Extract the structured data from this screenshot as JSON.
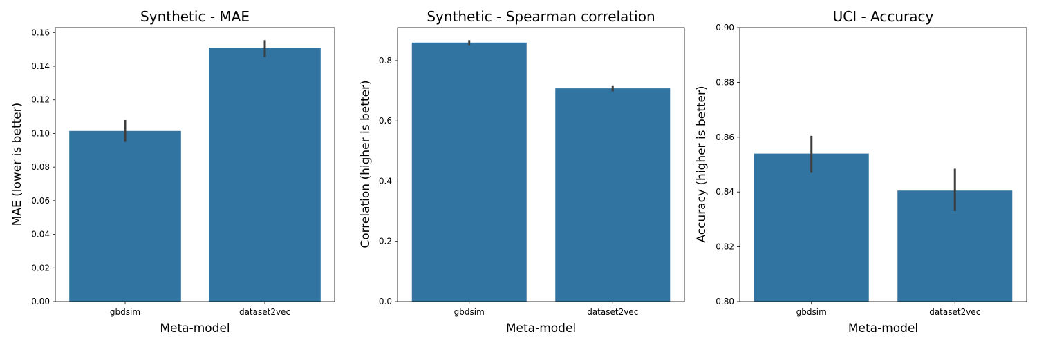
{
  "chart_data": [
    {
      "type": "bar",
      "title": "Synthetic - MAE",
      "xlabel": "Meta-model",
      "ylabel": "MAE (lower is better)",
      "categories": [
        "gbdsim",
        "dataset2vec"
      ],
      "values": [
        0.1015,
        0.151
      ],
      "error_bars": [
        [
          0.095,
          0.108
        ],
        [
          0.1455,
          0.1555
        ]
      ],
      "ylim": [
        0,
        0.163
      ],
      "yticks": [
        0.0,
        0.02,
        0.04,
        0.06,
        0.08,
        0.1,
        0.12,
        0.14,
        0.16
      ],
      "ytick_labels": [
        "0.00",
        "0.02",
        "0.04",
        "0.06",
        "0.08",
        "0.10",
        "0.12",
        "0.14",
        "0.16"
      ],
      "grid": false,
      "bar_color": "#3274a1"
    },
    {
      "type": "bar",
      "title": "Synthetic - Spearman correlation",
      "xlabel": "Meta-model",
      "ylabel": "Correlation (higher is better)",
      "categories": [
        "gbdsim",
        "dataset2vec"
      ],
      "values": [
        0.86,
        0.708
      ],
      "error_bars": [
        [
          0.852,
          0.868
        ],
        [
          0.698,
          0.718
        ]
      ],
      "ylim": [
        0,
        0.91
      ],
      "yticks": [
        0.0,
        0.2,
        0.4,
        0.6,
        0.8
      ],
      "ytick_labels": [
        "0.0",
        "0.2",
        "0.4",
        "0.6",
        "0.8"
      ],
      "grid": false,
      "bar_color": "#3274a1"
    },
    {
      "type": "bar",
      "title": "UCI - Accuracy",
      "xlabel": "Meta-model",
      "ylabel": "Accuracy (higher is better)",
      "categories": [
        "gbdsim",
        "dataset2vec"
      ],
      "values": [
        0.854,
        0.8405
      ],
      "error_bars": [
        [
          0.847,
          0.8605
        ],
        [
          0.833,
          0.8485
        ]
      ],
      "ylim": [
        0.8,
        0.9
      ],
      "yticks": [
        0.8,
        0.82,
        0.84,
        0.86,
        0.88,
        0.9
      ],
      "ytick_labels": [
        "0.80",
        "0.82",
        "0.84",
        "0.86",
        "0.88",
        "0.90"
      ],
      "grid": false,
      "bar_color": "#3274a1"
    }
  ]
}
